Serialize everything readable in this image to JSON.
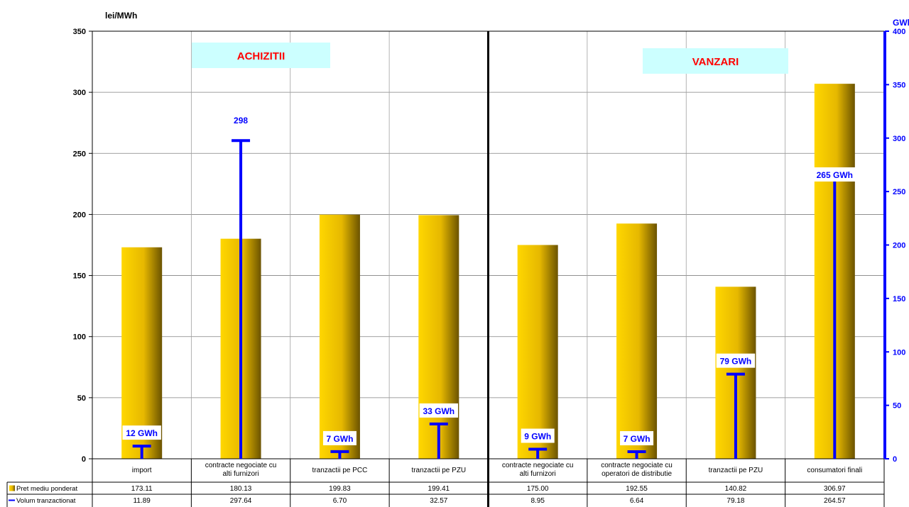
{
  "chart_data": {
    "type": "bar",
    "left_axis": {
      "unit": "lei/MWh",
      "ylim": [
        0,
        350
      ],
      "ticks": [
        "0",
        "50",
        "100",
        "150",
        "200",
        "250",
        "300",
        "350"
      ]
    },
    "right_axis": {
      "unit": "GWh",
      "ylim": [
        0,
        400
      ],
      "ticks": [
        "0",
        "50",
        "100",
        "150",
        "200",
        "250",
        "300",
        "350",
        "400"
      ]
    },
    "sections": [
      {
        "label": "ACHIZITII",
        "color": "#ff0000",
        "background": "#ccffff"
      },
      {
        "label": "VANZARI",
        "color": "#ff0000",
        "background": "#ccffff"
      }
    ],
    "categories": [
      "import",
      "contracte negociate cu alti furnizori",
      "tranzactii pe PCC",
      "tranzactii pe PZU",
      "contracte negociate cu alti furnizori",
      "contracte negociate cu operatori de distributie",
      "tranzactii pe PZU",
      "consumatori finali"
    ],
    "series": [
      {
        "name": "Pret mediu ponderat",
        "kind": "bar",
        "axis": "left",
        "color": "#e6b800",
        "values": [
          173.11,
          180.13,
          199.83,
          199.41,
          175.0,
          192.55,
          140.82,
          306.97
        ],
        "table_values": [
          "173.11",
          "180.13",
          "199.83",
          "199.41",
          "175.00",
          "192.55",
          "140.82",
          "306.97"
        ]
      },
      {
        "name": "Volum tranzactionat",
        "kind": "line-marker",
        "axis": "right",
        "color": "#0000ff",
        "values": [
          11.89,
          297.64,
          6.7,
          32.57,
          8.95,
          6.64,
          79.18,
          264.57
        ],
        "table_values": [
          "11.89",
          "297.64",
          "6.70",
          "32.57",
          "8.95",
          "6.64",
          "79.18",
          "264.57"
        ],
        "data_labels": [
          "12 GWh",
          "298",
          "7 GWh",
          "33 GWh",
          "9 GWh",
          "7 GWh",
          "79 GWh",
          "265 GWh"
        ]
      }
    ],
    "grid": true
  }
}
